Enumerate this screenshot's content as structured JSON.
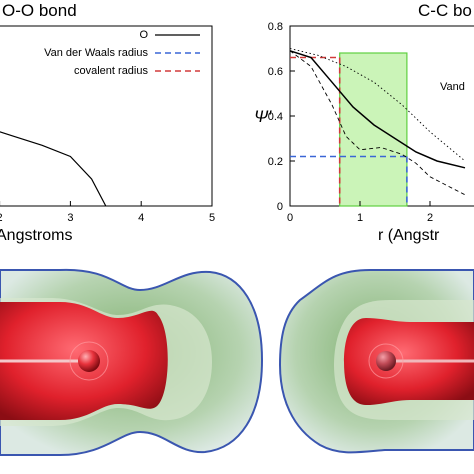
{
  "chart_data": [
    {
      "type": "line",
      "title": "O-O bond",
      "xlabel": "Angstroms",
      "xlim": [
        0,
        5
      ],
      "x_ticks": [
        "2",
        "3",
        "4",
        "5"
      ],
      "legend": {
        "placement": "top-right",
        "entries": [
          {
            "label": "O",
            "style": "solid",
            "color": "#000000"
          },
          {
            "label": "Van der Waals radius",
            "style": "dashed",
            "color": "#3a66d6"
          },
          {
            "label": "covalent radius",
            "style": "dashed",
            "color": "#d23a3a"
          }
        ]
      },
      "series": [
        {
          "name": "O",
          "x": [
            1.8,
            2.2,
            2.6,
            3.0,
            3.3,
            3.5
          ],
          "y": [
            0.35,
            0.31,
            0.27,
            0.22,
            0.12,
            0.0
          ]
        }
      ]
    },
    {
      "type": "line",
      "title": "C-C bo",
      "xlabel": "r (Angstr",
      "ylabel": "Ψ′",
      "xlim": [
        0,
        2.5
      ],
      "ylim": [
        0,
        0.8
      ],
      "x_ticks": [
        "0",
        "1",
        "2"
      ],
      "y_ticks": [
        "0",
        "0.2",
        "0.4",
        "0.6",
        "0.8"
      ],
      "legend_fragment": "Vand",
      "shaded_region": {
        "x": [
          0.71,
          1.67
        ],
        "y": [
          0,
          0.68
        ],
        "color": "#b9f0a0"
      },
      "markers": {
        "vdw_radius": 1.67,
        "vdw_level": 0.22,
        "cov_radius": 0.71,
        "cov_level": 0.66
      },
      "series": [
        {
          "x": [
            0,
            0.3,
            0.6,
            0.9,
            1.2,
            1.5,
            1.8,
            2.1,
            2.5
          ],
          "y": [
            0.69,
            0.66,
            0.55,
            0.44,
            0.36,
            0.3,
            0.24,
            0.2,
            0.17
          ],
          "style": "solid",
          "color": "#000000"
        },
        {
          "x": [
            0,
            0.4,
            0.8,
            1.2,
            1.6,
            2.0,
            2.5
          ],
          "y": [
            0.7,
            0.67,
            0.62,
            0.55,
            0.45,
            0.33,
            0.2
          ],
          "style": "dotted",
          "color": "#000000"
        },
        {
          "x": [
            0,
            0.3,
            0.6,
            0.8,
            1.0,
            1.3,
            1.6,
            1.8,
            2.0,
            2.5
          ],
          "y": [
            0.69,
            0.62,
            0.45,
            0.31,
            0.25,
            0.26,
            0.23,
            0.19,
            0.13,
            0.05
          ],
          "style": "dashed",
          "color": "#000000"
        }
      ]
    }
  ],
  "colors": {
    "density_core": "#e0212c",
    "density_outer": "#c5d9c4",
    "density_edge": "#3a56b0"
  }
}
